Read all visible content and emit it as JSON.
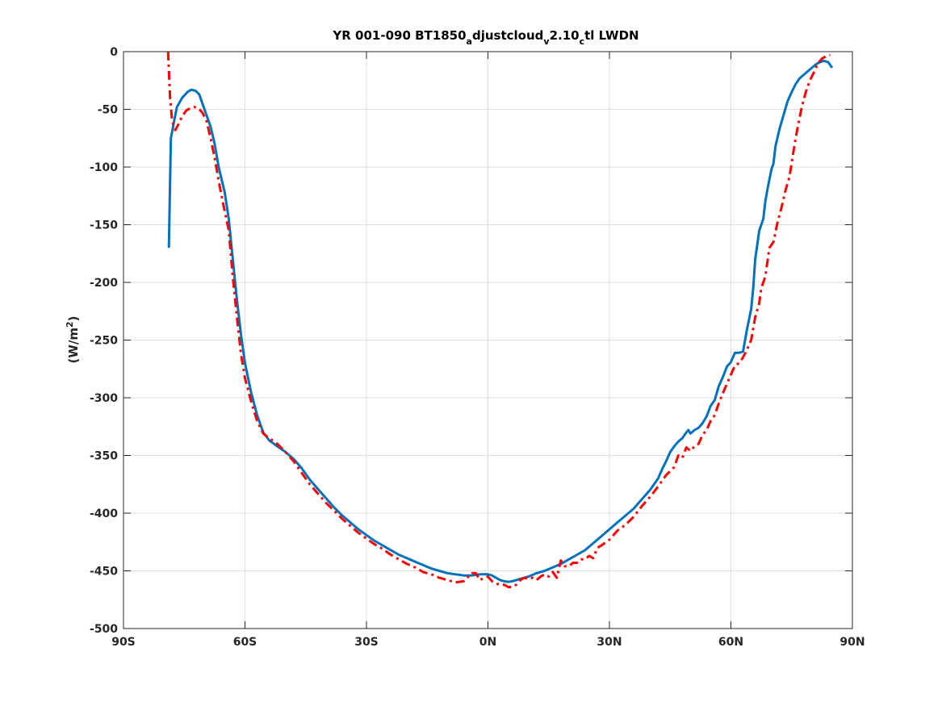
{
  "chart_data": {
    "type": "line",
    "title": {
      "part1": "YR 001-090 BT1850",
      "sub1": "a",
      "part2": "djustcloud",
      "sub2": "v",
      "part3": "2.10",
      "sub3": "c",
      "part4": "tl LWDN"
    },
    "xlabel": "",
    "ylabel": {
      "prefix": "(W/m",
      "sup": "2",
      "suffix": ")"
    },
    "xlim": [
      -90,
      90
    ],
    "ylim": [
      -500,
      0
    ],
    "grid": true,
    "x_ticks": [
      {
        "value": -90,
        "label": "90S"
      },
      {
        "value": -60,
        "label": "60S"
      },
      {
        "value": -30,
        "label": "30S"
      },
      {
        "value": 0,
        "label": "0N"
      },
      {
        "value": 30,
        "label": "30N"
      },
      {
        "value": 60,
        "label": "60N"
      },
      {
        "value": 90,
        "label": "90N"
      }
    ],
    "y_ticks": [
      0,
      -50,
      -100,
      -150,
      -200,
      -250,
      -300,
      -350,
      -400,
      -450,
      -500
    ],
    "series": [
      {
        "style": "solid",
        "color": "#0072bd",
        "points": [
          [
            -78.8,
            -170
          ],
          [
            -78.3,
            -75
          ],
          [
            -77.6,
            -62
          ],
          [
            -76.8,
            -48
          ],
          [
            -75.5,
            -40
          ],
          [
            -74.2,
            -35
          ],
          [
            -73.3,
            -33
          ],
          [
            -72.2,
            -34
          ],
          [
            -71.3,
            -37
          ],
          [
            -70.5,
            -45
          ],
          [
            -69.5,
            -55
          ],
          [
            -68.5,
            -65
          ],
          [
            -67.5,
            -80
          ],
          [
            -66.5,
            -100
          ],
          [
            -65.0,
            -122
          ],
          [
            -64.0,
            -145
          ],
          [
            -63.0,
            -180
          ],
          [
            -62.0,
            -215
          ],
          [
            -61.0,
            -245
          ],
          [
            -60.0,
            -270
          ],
          [
            -58.5,
            -295
          ],
          [
            -57.0,
            -315
          ],
          [
            -55.5,
            -330
          ],
          [
            -54.0,
            -337
          ],
          [
            -52.0,
            -342
          ],
          [
            -50.0,
            -347
          ],
          [
            -48.0,
            -353
          ],
          [
            -46.0,
            -361
          ],
          [
            -44.0,
            -371
          ],
          [
            -42.0,
            -379
          ],
          [
            -40.0,
            -387
          ],
          [
            -38.0,
            -395
          ],
          [
            -36.0,
            -402
          ],
          [
            -34.0,
            -408
          ],
          [
            -32.0,
            -414
          ],
          [
            -30.0,
            -419
          ],
          [
            -28.0,
            -424
          ],
          [
            -26.0,
            -428
          ],
          [
            -24.0,
            -432
          ],
          [
            -22.0,
            -436
          ],
          [
            -20.0,
            -439
          ],
          [
            -18.0,
            -442
          ],
          [
            -16.0,
            -445
          ],
          [
            -14.0,
            -448
          ],
          [
            -12.0,
            -450
          ],
          [
            -10.0,
            -452
          ],
          [
            -8.0,
            -453
          ],
          [
            -6.0,
            -454
          ],
          [
            -4.0,
            -454
          ],
          [
            -2.0,
            -453
          ],
          [
            0.0,
            -453
          ],
          [
            1.0,
            -454
          ],
          [
            2.0,
            -456
          ],
          [
            3.0,
            -458
          ],
          [
            4.0,
            -459
          ],
          [
            5.0,
            -459.5
          ],
          [
            6.0,
            -459
          ],
          [
            7.0,
            -458
          ],
          [
            8.0,
            -457
          ],
          [
            9.0,
            -456
          ],
          [
            10.0,
            -455
          ],
          [
            12.0,
            -452
          ],
          [
            14.0,
            -450
          ],
          [
            16.0,
            -447
          ],
          [
            18.0,
            -444
          ],
          [
            20.0,
            -440
          ],
          [
            22.0,
            -436
          ],
          [
            24.0,
            -432
          ],
          [
            26.0,
            -426
          ],
          [
            28.0,
            -420
          ],
          [
            30.0,
            -414
          ],
          [
            32.0,
            -408
          ],
          [
            34.0,
            -402
          ],
          [
            36.0,
            -396
          ],
          [
            38.0,
            -388
          ],
          [
            40.0,
            -380
          ],
          [
            42.0,
            -370
          ],
          [
            43.0,
            -362
          ],
          [
            44.0,
            -355
          ],
          [
            45.0,
            -347
          ],
          [
            46.0,
            -342
          ],
          [
            47.0,
            -338
          ],
          [
            48.0,
            -335
          ],
          [
            49.0,
            -330
          ],
          [
            49.5,
            -328
          ],
          [
            50.0,
            -331
          ],
          [
            51.0,
            -328
          ],
          [
            52.0,
            -326
          ],
          [
            53.0,
            -322
          ],
          [
            54.0,
            -316
          ],
          [
            55.0,
            -307
          ],
          [
            56.0,
            -302
          ],
          [
            57.0,
            -290
          ],
          [
            58.0,
            -282
          ],
          [
            59.0,
            -273
          ],
          [
            60.0,
            -269
          ],
          [
            61.0,
            -261
          ],
          [
            62.0,
            -261
          ],
          [
            63.0,
            -260
          ],
          [
            64.0,
            -240
          ],
          [
            65.0,
            -223
          ],
          [
            65.5,
            -205
          ],
          [
            66.0,
            -180
          ],
          [
            67.0,
            -155
          ],
          [
            68.0,
            -145
          ],
          [
            68.5,
            -130
          ],
          [
            69.0,
            -120
          ],
          [
            70.0,
            -102
          ],
          [
            70.5,
            -97
          ],
          [
            71.0,
            -82
          ],
          [
            72.0,
            -67
          ],
          [
            73.0,
            -55
          ],
          [
            74.0,
            -43
          ],
          [
            75.0,
            -35
          ],
          [
            76.0,
            -28
          ],
          [
            77.0,
            -23
          ],
          [
            78.0,
            -20
          ],
          [
            79.0,
            -17
          ],
          [
            80.0,
            -14
          ],
          [
            81.0,
            -11
          ],
          [
            82.0,
            -9
          ],
          [
            83.0,
            -8
          ],
          [
            84.0,
            -9
          ],
          [
            85.0,
            -14
          ]
        ]
      },
      {
        "style": "dash-dot",
        "color": "#ff0000",
        "points": [
          [
            -79.0,
            0
          ],
          [
            -78.5,
            -40
          ],
          [
            -78.0,
            -60
          ],
          [
            -77.2,
            -68
          ],
          [
            -76.3,
            -62
          ],
          [
            -75.5,
            -56
          ],
          [
            -74.5,
            -51
          ],
          [
            -73.5,
            -49
          ],
          [
            -72.5,
            -48
          ],
          [
            -71.5,
            -49
          ],
          [
            -70.5,
            -53
          ],
          [
            -69.5,
            -60
          ],
          [
            -68.5,
            -75
          ],
          [
            -67.5,
            -92
          ],
          [
            -66.5,
            -112
          ],
          [
            -65.5,
            -130
          ],
          [
            -64.0,
            -155
          ],
          [
            -63.0,
            -195
          ],
          [
            -62.0,
            -230
          ],
          [
            -61.0,
            -262
          ],
          [
            -60.0,
            -283
          ],
          [
            -58.5,
            -303
          ],
          [
            -57.0,
            -320
          ],
          [
            -55.5,
            -331
          ],
          [
            -54.0,
            -335
          ],
          [
            -52.0,
            -340
          ],
          [
            -50.0,
            -347
          ],
          [
            -48.0,
            -355
          ],
          [
            -46.0,
            -365
          ],
          [
            -44.0,
            -375
          ],
          [
            -42.0,
            -383
          ],
          [
            -40.0,
            -391
          ],
          [
            -38.0,
            -398
          ],
          [
            -36.0,
            -405
          ],
          [
            -34.0,
            -411
          ],
          [
            -32.0,
            -417
          ],
          [
            -30.0,
            -422
          ],
          [
            -28.0,
            -427
          ],
          [
            -26.0,
            -431
          ],
          [
            -24.0,
            -436
          ],
          [
            -22.0,
            -440
          ],
          [
            -20.0,
            -444
          ],
          [
            -18.0,
            -447
          ],
          [
            -16.0,
            -451
          ],
          [
            -14.0,
            -453
          ],
          [
            -12.0,
            -456
          ],
          [
            -10.0,
            -458
          ],
          [
            -8.0,
            -460
          ],
          [
            -6.0,
            -459
          ],
          [
            -4.0,
            -452
          ],
          [
            -3.0,
            -452
          ],
          [
            -2.0,
            -458
          ],
          [
            -1.0,
            -456
          ],
          [
            0.0,
            -455
          ],
          [
            1.0,
            -459
          ],
          [
            2.0,
            -461
          ],
          [
            3.0,
            -462
          ],
          [
            4.0,
            -462
          ],
          [
            5.0,
            -464
          ],
          [
            6.0,
            -464
          ],
          [
            7.0,
            -462
          ],
          [
            8.0,
            -458
          ],
          [
            9.0,
            -456
          ],
          [
            10.0,
            -457
          ],
          [
            11.0,
            -456
          ],
          [
            12.0,
            -458
          ],
          [
            13.0,
            -455
          ],
          [
            14.0,
            -453
          ],
          [
            15.0,
            -455
          ],
          [
            16.0,
            -451
          ],
          [
            17.0,
            -456
          ],
          [
            18.0,
            -441
          ],
          [
            19.0,
            -446
          ],
          [
            20.0,
            -446
          ],
          [
            21.0,
            -443
          ],
          [
            22.0,
            -443
          ],
          [
            23.0,
            -440
          ],
          [
            24.0,
            -440
          ],
          [
            25.0,
            -437
          ],
          [
            26.0,
            -439
          ],
          [
            27.0,
            -430
          ],
          [
            28.0,
            -428
          ],
          [
            30.0,
            -423
          ],
          [
            32.0,
            -415
          ],
          [
            34.0,
            -410
          ],
          [
            36.0,
            -403
          ],
          [
            38.0,
            -394
          ],
          [
            40.0,
            -386
          ],
          [
            42.0,
            -377
          ],
          [
            44.0,
            -367
          ],
          [
            46.0,
            -360
          ],
          [
            47.0,
            -350
          ],
          [
            48.0,
            -352
          ],
          [
            49.0,
            -343
          ],
          [
            50.0,
            -346
          ],
          [
            51.0,
            -342
          ],
          [
            52.0,
            -340
          ],
          [
            53.0,
            -332
          ],
          [
            54.0,
            -328
          ],
          [
            55.0,
            -320
          ],
          [
            56.0,
            -315
          ],
          [
            57.0,
            -305
          ],
          [
            58.0,
            -296
          ],
          [
            59.0,
            -288
          ],
          [
            60.0,
            -280
          ],
          [
            61.0,
            -272
          ],
          [
            62.0,
            -270
          ],
          [
            63.0,
            -265
          ],
          [
            64.0,
            -258
          ],
          [
            65.0,
            -250
          ],
          [
            66.0,
            -230
          ],
          [
            67.0,
            -218
          ],
          [
            67.5,
            -205
          ],
          [
            68.5,
            -195
          ],
          [
            69.5,
            -170
          ],
          [
            70.5,
            -165
          ],
          [
            71.5,
            -148
          ],
          [
            72.5,
            -135
          ],
          [
            73.5,
            -120
          ],
          [
            74.5,
            -108
          ],
          [
            75.5,
            -85
          ],
          [
            76.5,
            -65
          ],
          [
            77.5,
            -48
          ],
          [
            78.5,
            -35
          ],
          [
            79.5,
            -25
          ],
          [
            80.5,
            -18
          ],
          [
            81.5,
            -10
          ],
          [
            82.5,
            -6
          ],
          [
            83.5,
            -4
          ],
          [
            84.5,
            -3
          ]
        ]
      }
    ]
  }
}
